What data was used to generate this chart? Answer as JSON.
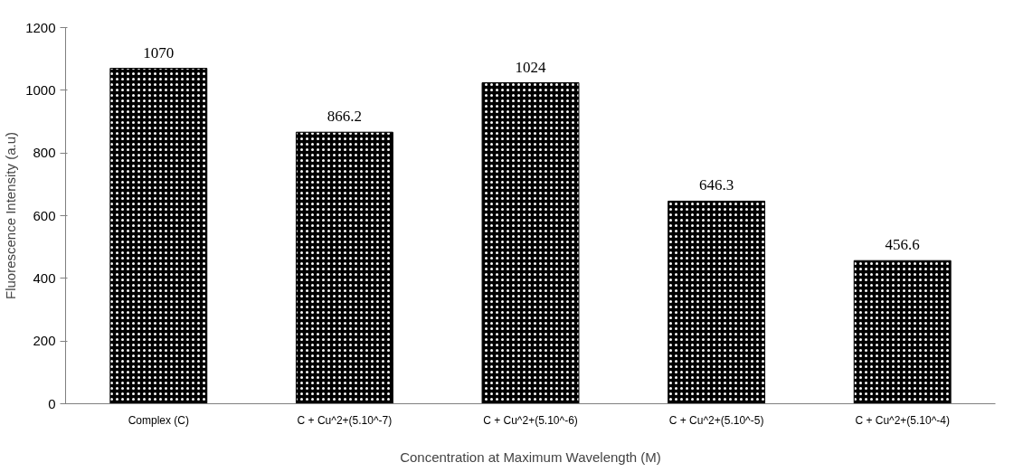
{
  "chart_data": {
    "type": "bar",
    "xlabel": "Concentration at Maximum Wavelength (M)",
    "ylabel": "Fluorescence Intensity (a.u)",
    "categories": [
      "Complex (C)",
      "C + Cu^2+(5.10^-7)",
      "C + Cu^2+(5.10^-6)",
      "C + Cu^2+(5.10^-5)",
      "C + Cu^2+(5.10^-4)"
    ],
    "values": [
      1070,
      866.2,
      1024,
      646.3,
      456.6
    ],
    "color": "#000000",
    "ylim": [
      0,
      1200
    ],
    "yticks": [
      0,
      200,
      400,
      600,
      800,
      1000,
      1200
    ],
    "data_labels": true
  }
}
